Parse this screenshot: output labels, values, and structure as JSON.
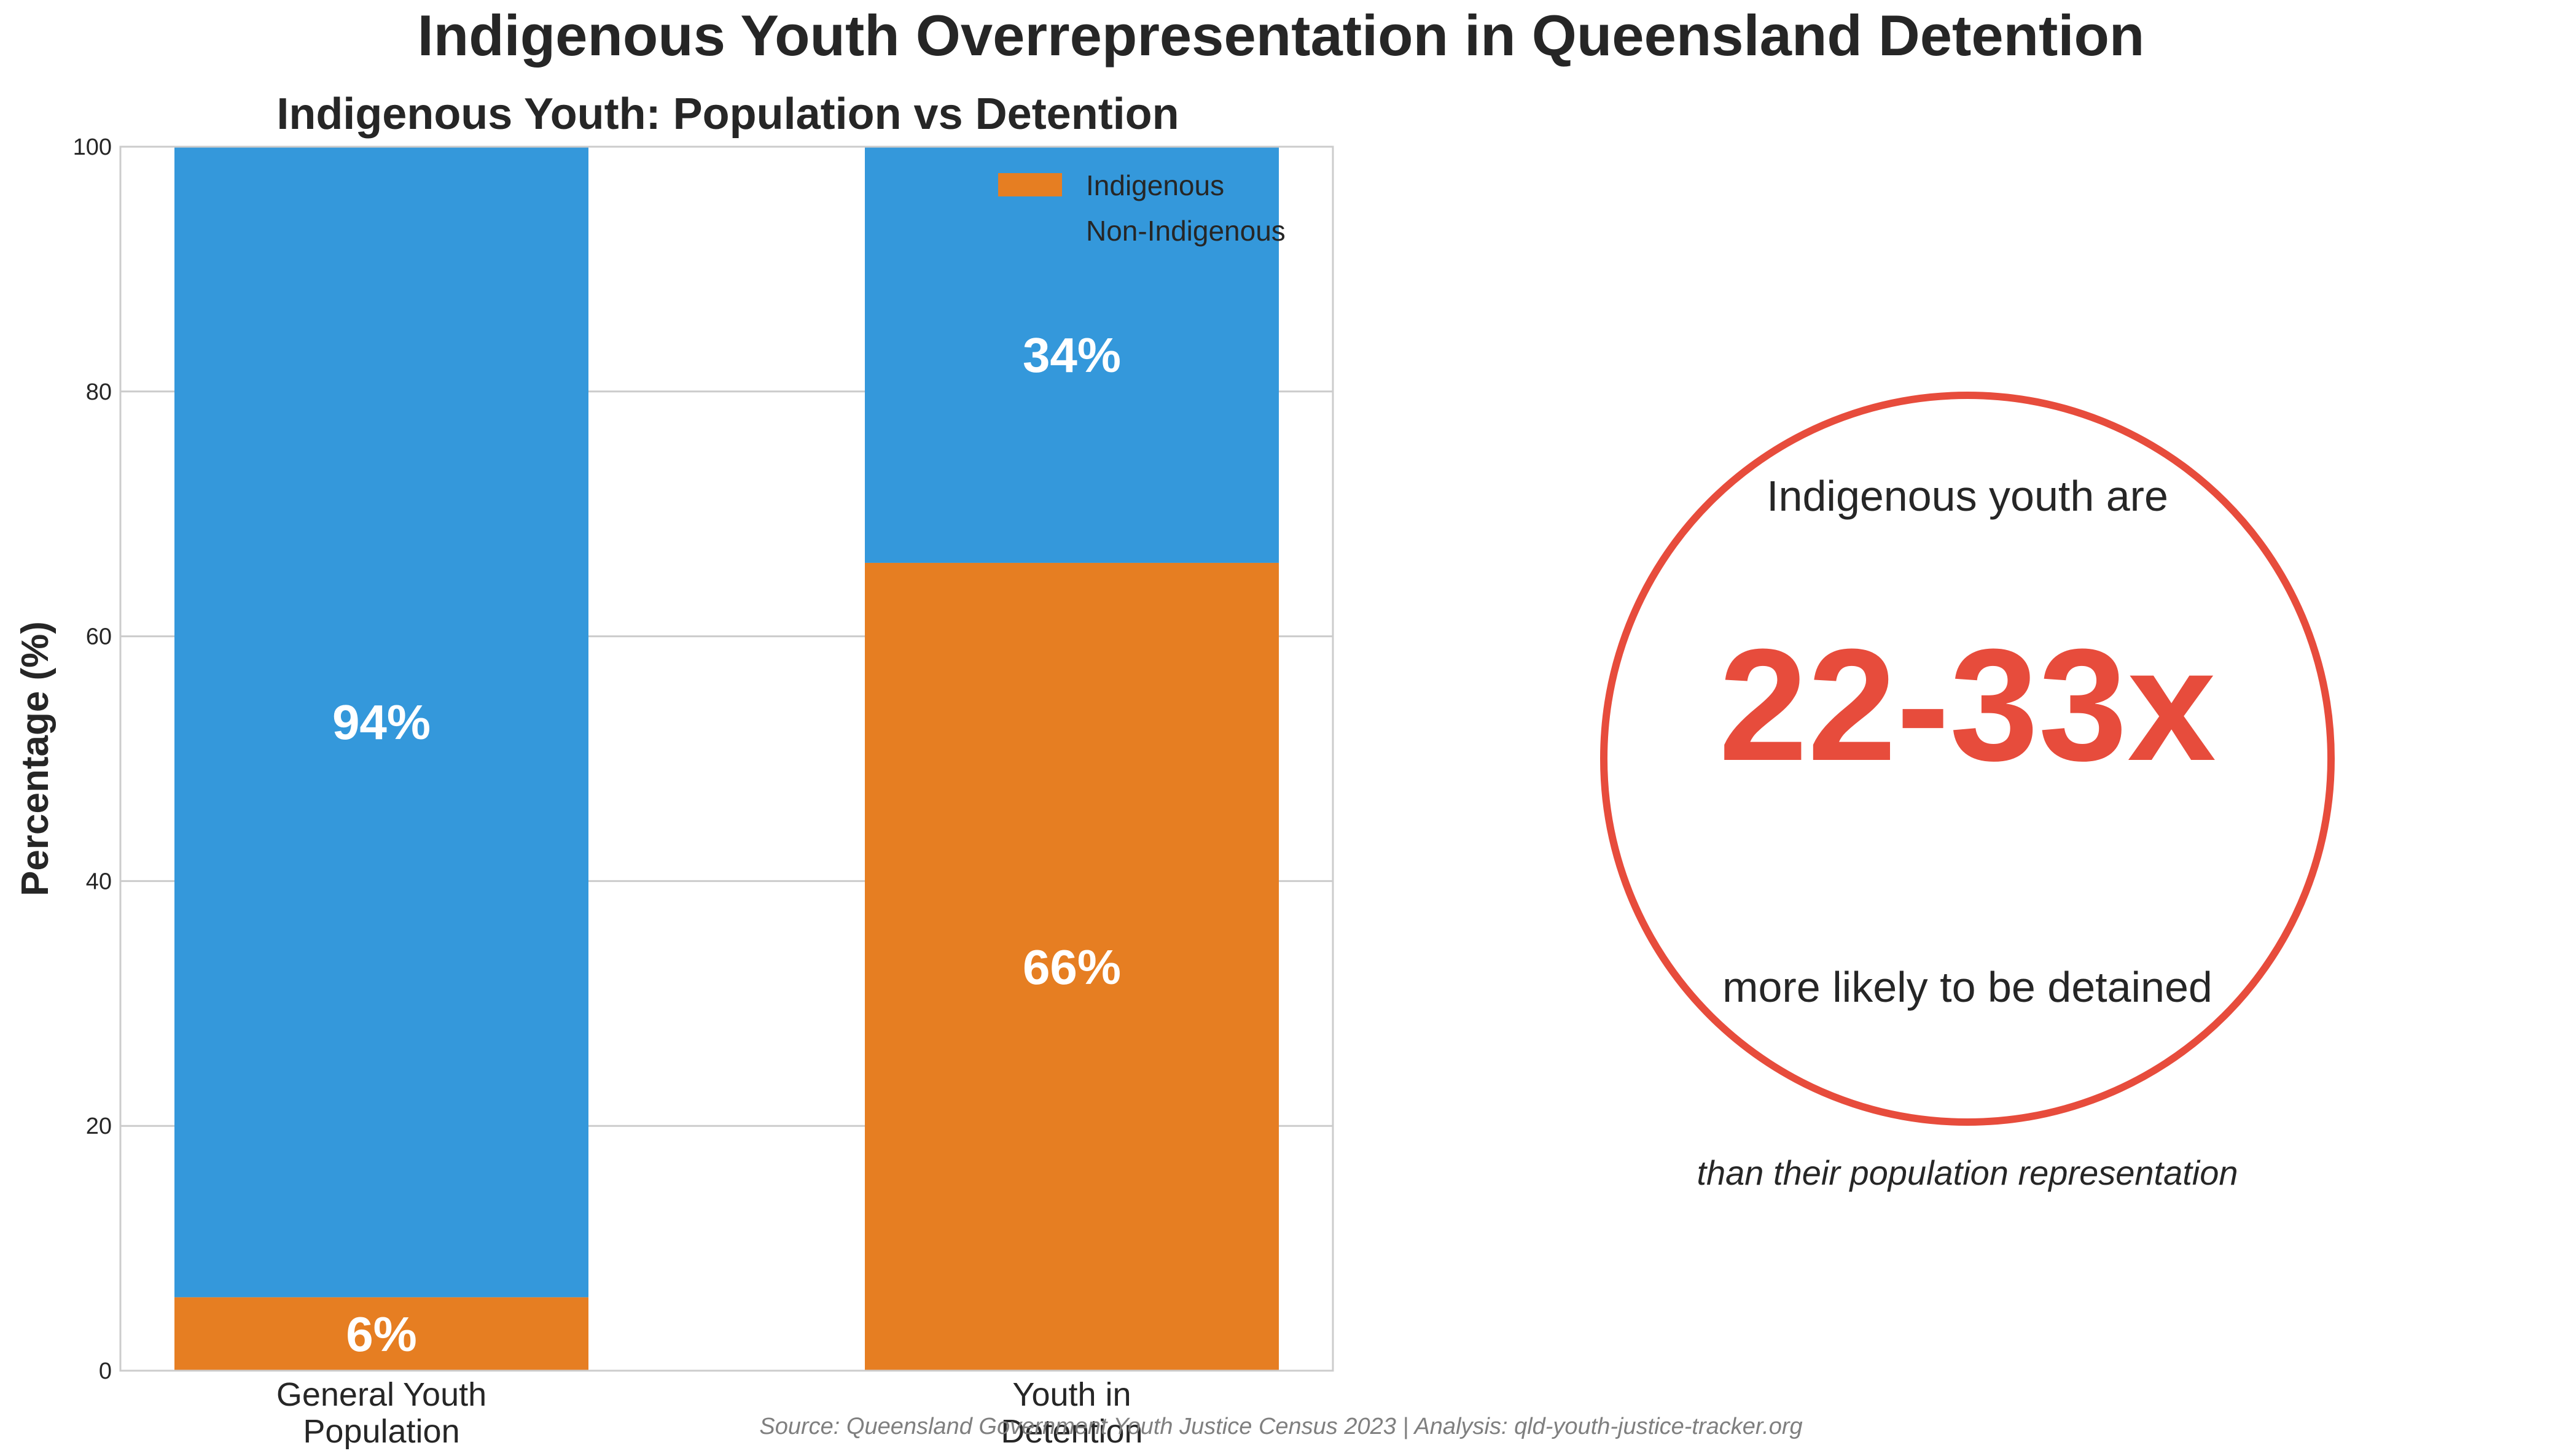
{
  "figure": {
    "title": "Indigenous Youth Overrepresentation in Queensland Detention",
    "source": "Source: Queensland Government Youth Justice Census 2023 | Analysis: qld-youth-justice-tracker.org"
  },
  "chart_data": [
    {
      "type": "bar",
      "stacked": true,
      "title": "Indigenous Youth: Population vs Detention",
      "xlabel": "",
      "ylabel": "Percentage (%)",
      "ylim": [
        0,
        100
      ],
      "yticks": [
        0,
        20,
        40,
        60,
        80,
        100
      ],
      "grid": true,
      "legend_position": "top-right",
      "categories": [
        "General Youth Population",
        "Youth in Detention"
      ],
      "category_lines": [
        [
          "General Youth",
          "Population"
        ],
        [
          "Youth in",
          "Detention"
        ]
      ],
      "series": [
        {
          "name": "Indigenous",
          "values": [
            6,
            66
          ],
          "labels": [
            "6%",
            "66%"
          ],
          "color": "#e67e22"
        },
        {
          "name": "Non-Indigenous",
          "values": [
            94,
            34
          ],
          "labels": [
            "94%",
            "34%"
          ],
          "color": "#3498db"
        }
      ]
    },
    {
      "type": "annotation",
      "lead_text": "Indigenous youth are",
      "headline": "22-33x",
      "follow_text": "more likely to be detained",
      "footnote": "than their population representation",
      "accent_color": "#e74c3c"
    }
  ]
}
